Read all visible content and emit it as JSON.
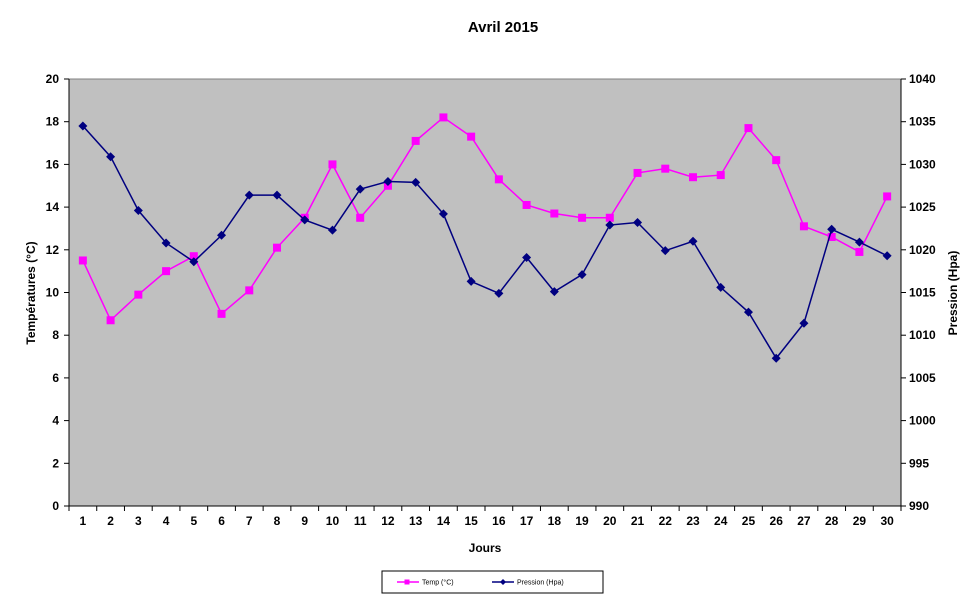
{
  "chart_data": {
    "type": "line",
    "title": "Avril 2015",
    "xlabel": "Jours",
    "ylabel_left": "Températures (°C)",
    "ylabel_right": "Pression (Hpa)",
    "x": [
      1,
      2,
      3,
      4,
      5,
      6,
      7,
      8,
      9,
      10,
      11,
      12,
      13,
      14,
      15,
      16,
      17,
      18,
      19,
      20,
      21,
      22,
      23,
      24,
      25,
      26,
      27,
      28,
      29,
      30
    ],
    "ylim_left": [
      0,
      20
    ],
    "yticks_left": [
      0,
      2,
      4,
      6,
      8,
      10,
      12,
      14,
      16,
      18,
      20
    ],
    "ylim_right": [
      990,
      1040
    ],
    "yticks_right": [
      990,
      995,
      1000,
      1005,
      1010,
      1015,
      1020,
      1025,
      1030,
      1035,
      1040
    ],
    "grid": false,
    "plot_background": "#C0C0C0",
    "legend_position": "bottom",
    "series": [
      {
        "name": "Temp (°C)",
        "axis": "left",
        "color": "#FF00FF",
        "marker": "square",
        "values": [
          11.5,
          8.7,
          9.9,
          11.0,
          11.7,
          9.0,
          10.1,
          12.1,
          13.5,
          16.0,
          13.5,
          15.0,
          17.1,
          18.2,
          17.3,
          15.3,
          14.1,
          13.7,
          13.5,
          13.5,
          15.6,
          15.8,
          15.4,
          15.5,
          17.7,
          16.2,
          13.1,
          12.6,
          11.9,
          14.5
        ]
      },
      {
        "name": "Pression (Hpa)",
        "axis": "right",
        "color": "#000080",
        "marker": "diamond",
        "values": [
          1034.5,
          1030.9,
          1024.6,
          1020.8,
          1018.6,
          1021.7,
          1026.4,
          1026.4,
          1023.5,
          1022.3,
          1027.1,
          1028.0,
          1027.9,
          1024.2,
          1016.3,
          1014.9,
          1019.1,
          1015.1,
          1017.1,
          1022.9,
          1023.2,
          1019.9,
          1021.0,
          1015.6,
          1012.7,
          1007.3,
          1011.4,
          1022.4,
          1020.9,
          1019.3
        ]
      }
    ]
  }
}
